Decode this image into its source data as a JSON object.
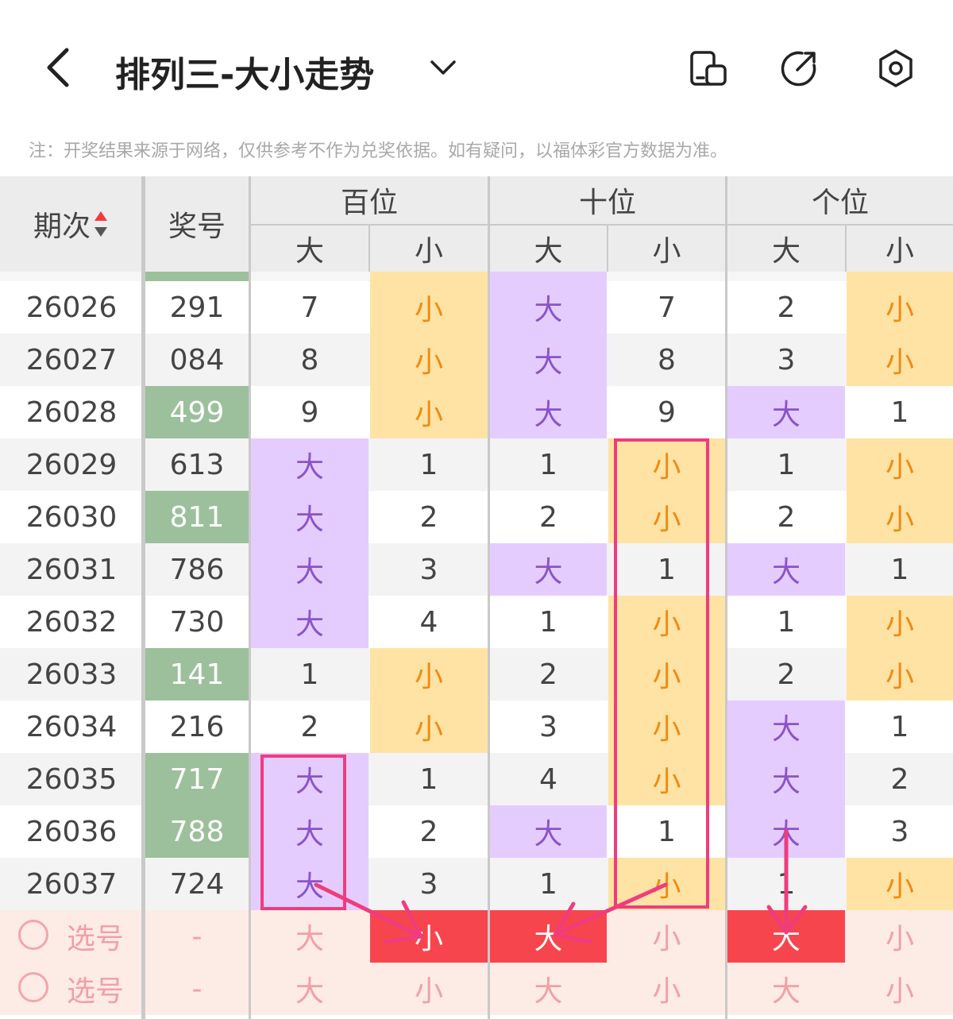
{
  "header": {
    "title": "排列三-大小走势",
    "icons": [
      "back-icon",
      "dropdown-chevron-icon",
      "split-screen-icon",
      "share-icon",
      "settings-icon"
    ]
  },
  "note": "注：开奖结果来源于网络，仅供参考不作为兑奖依据。如有疑问，以福体彩官方数据为准。",
  "table": {
    "col_period": "期次",
    "col_number": "奖号",
    "groups": [
      "百位",
      "十位",
      "个位"
    ],
    "sub": [
      "大",
      "小"
    ],
    "rows": [
      {
        "period": "26026",
        "number": "291",
        "prize": false,
        "cells": [
          "7",
          "小",
          "大",
          "7",
          "2",
          "小"
        ]
      },
      {
        "period": "26027",
        "number": "084",
        "prize": false,
        "cells": [
          "8",
          "小",
          "大",
          "8",
          "3",
          "小"
        ]
      },
      {
        "period": "26028",
        "number": "499",
        "prize": true,
        "cells": [
          "9",
          "小",
          "大",
          "9",
          "大",
          "1"
        ]
      },
      {
        "period": "26029",
        "number": "613",
        "prize": false,
        "cells": [
          "大",
          "1",
          "1",
          "小",
          "1",
          "小"
        ]
      },
      {
        "period": "26030",
        "number": "811",
        "prize": true,
        "cells": [
          "大",
          "2",
          "2",
          "小",
          "2",
          "小"
        ]
      },
      {
        "period": "26031",
        "number": "786",
        "prize": false,
        "cells": [
          "大",
          "3",
          "大",
          "1",
          "大",
          "1"
        ]
      },
      {
        "period": "26032",
        "number": "730",
        "prize": false,
        "cells": [
          "大",
          "4",
          "1",
          "小",
          "1",
          "小"
        ]
      },
      {
        "period": "26033",
        "number": "141",
        "prize": true,
        "cells": [
          "1",
          "小",
          "2",
          "小",
          "2",
          "小"
        ]
      },
      {
        "period": "26034",
        "number": "216",
        "prize": false,
        "cells": [
          "2",
          "小",
          "3",
          "小",
          "大",
          "1"
        ]
      },
      {
        "period": "26035",
        "number": "717",
        "prize": true,
        "cells": [
          "大",
          "1",
          "4",
          "小",
          "大",
          "2"
        ]
      },
      {
        "period": "26036",
        "number": "788",
        "prize": true,
        "cells": [
          "大",
          "2",
          "大",
          "1",
          "大",
          "3"
        ]
      },
      {
        "period": "26037",
        "number": "724",
        "prize": false,
        "cells": [
          "大",
          "3",
          "1",
          "小",
          "1",
          "小"
        ]
      }
    ]
  },
  "picks": [
    {
      "label": "选号",
      "number": "-",
      "cells": [
        "大",
        "小",
        "大",
        "小",
        "大",
        "小"
      ],
      "selected": [
        false,
        true,
        true,
        false,
        true,
        false
      ]
    },
    {
      "label": "选号",
      "number": "-",
      "cells": [
        "大",
        "小",
        "大",
        "小",
        "大",
        "小"
      ],
      "selected": [
        false,
        false,
        false,
        false,
        false,
        false
      ]
    }
  ],
  "colors": {
    "big_bg": "#e5ccff",
    "small_bg": "#ffe3a4",
    "prize_bg": "#9cc09b",
    "selected_bg": "#f7454e",
    "annotation": "#f03c7e"
  }
}
